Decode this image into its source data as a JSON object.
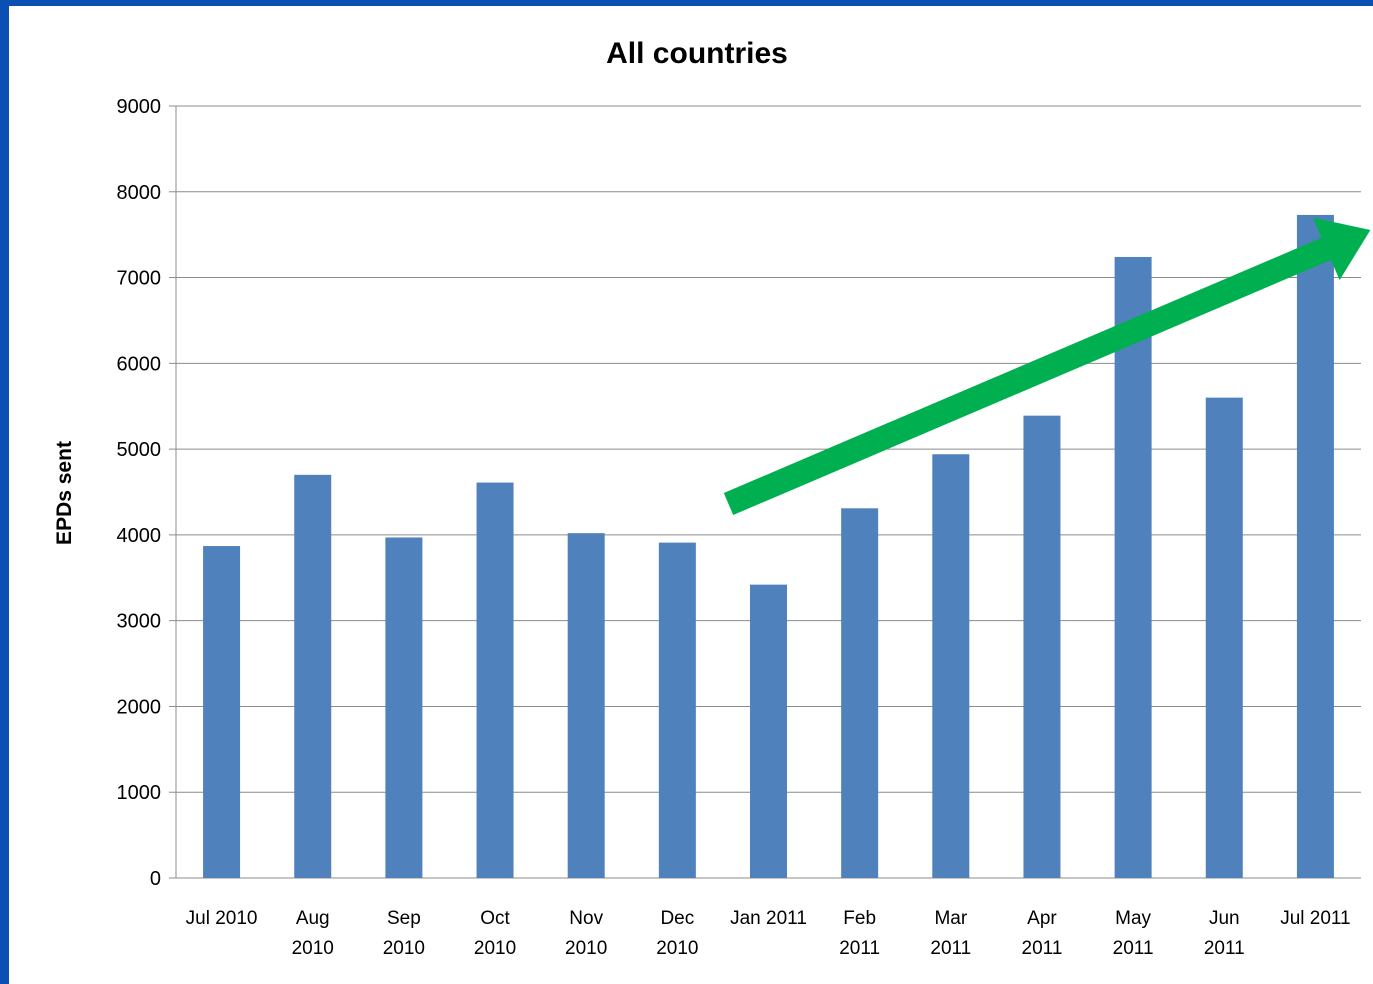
{
  "chart_data": {
    "type": "bar",
    "title": "All countries",
    "xlabel": "",
    "ylabel": "EPDs sent",
    "ylim": [
      0,
      9000
    ],
    "yticks": [
      "0",
      "1000",
      "2000",
      "3000",
      "4000",
      "5000",
      "6000",
      "7000",
      "8000",
      "9000"
    ],
    "grid": true,
    "categories": [
      [
        "Jul 2010"
      ],
      [
        "Aug",
        "2010"
      ],
      [
        "Sep",
        "2010"
      ],
      [
        "Oct",
        "2010"
      ],
      [
        "Nov",
        "2010"
      ],
      [
        "Dec",
        "2010"
      ],
      [
        "Jan 2011"
      ],
      [
        "Feb",
        "2011"
      ],
      [
        "Mar",
        "2011"
      ],
      [
        "Apr",
        "2011"
      ],
      [
        "May",
        "2011"
      ],
      [
        "Jun",
        "2011"
      ],
      [
        "Jul 2011"
      ]
    ],
    "values": [
      3870,
      4700,
      3970,
      4610,
      4020,
      3910,
      3420,
      4310,
      4940,
      5390,
      7240,
      5600,
      7730
    ],
    "bar_color": "#4f81bd",
    "annotation": {
      "type": "trend-arrow",
      "color": "#00b050",
      "from_category": "Jan 2011",
      "to_category": "Jul 2011"
    }
  }
}
